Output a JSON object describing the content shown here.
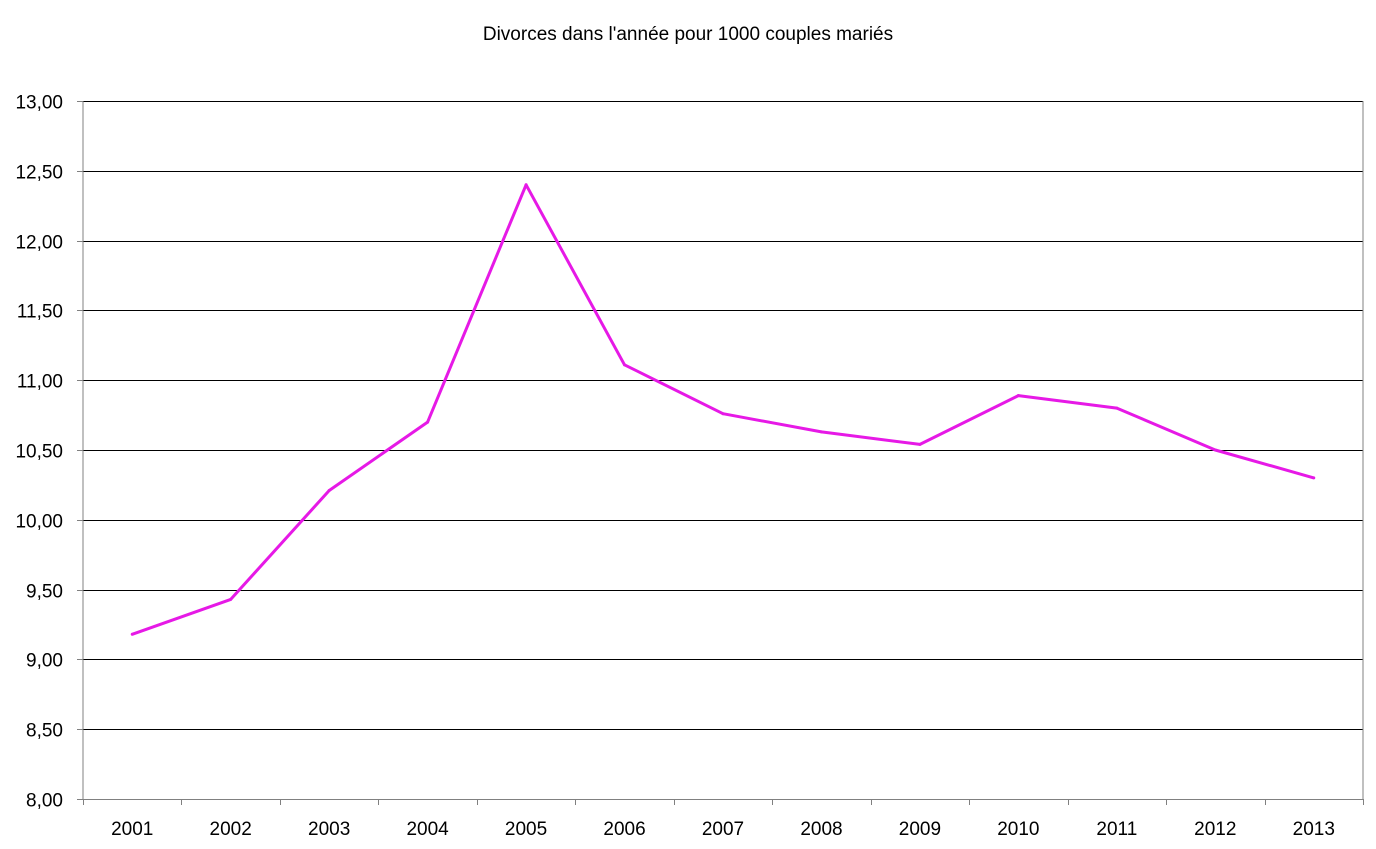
{
  "chart_data": {
    "type": "line",
    "title": "Divorces dans l'année  pour 1000 couples mariés",
    "xlabel": "",
    "ylabel": "",
    "categories": [
      "2001",
      "2002",
      "2003",
      "2004",
      "2005",
      "2006",
      "2007",
      "2008",
      "2009",
      "2010",
      "2011",
      "2012",
      "2013"
    ],
    "series": [
      {
        "values": [
          9.18,
          9.43,
          10.21,
          10.7,
          12.4,
          11.11,
          10.76,
          10.63,
          10.54,
          10.89,
          10.8,
          10.5,
          10.3
        ]
      }
    ],
    "ylim": [
      8.0,
      13.0
    ],
    "yticks": [
      8.0,
      8.5,
      9.0,
      9.5,
      10.0,
      10.5,
      11.0,
      11.5,
      12.0,
      12.5,
      13.0
    ],
    "ytick_labels": [
      "8,00",
      "8,50",
      "9,00",
      "9,50",
      "10,00",
      "10,50",
      "11,00",
      "11,50",
      "12,00",
      "12,50",
      "13,00"
    ],
    "grid": true,
    "line_color": "#E619E6"
  }
}
